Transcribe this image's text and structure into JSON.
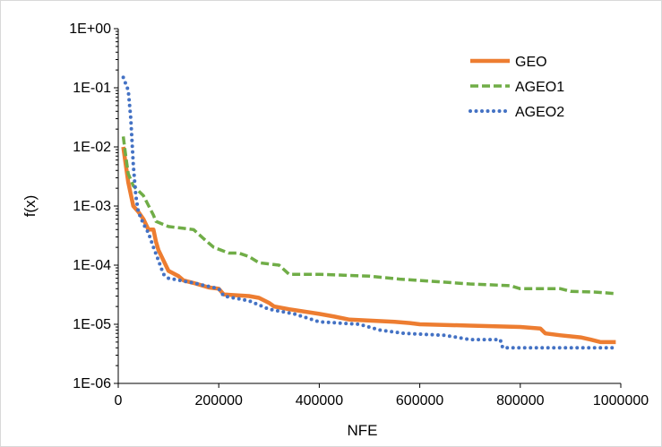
{
  "chart_data": {
    "type": "line",
    "title": "",
    "xlabel": "NFE",
    "ylabel": "f(x)",
    "xlim": [
      0,
      1000000
    ],
    "ylim": [
      1e-06,
      1
    ],
    "y_scale": "log",
    "grid": false,
    "legend_position": "top-right",
    "x_ticks": [
      {
        "value": 0,
        "label": "0"
      },
      {
        "value": 200000,
        "label": "200000"
      },
      {
        "value": 400000,
        "label": "400000"
      },
      {
        "value": 600000,
        "label": "600000"
      },
      {
        "value": 800000,
        "label": "800000"
      },
      {
        "value": 1000000,
        "label": "1000000"
      }
    ],
    "y_ticks": [
      {
        "value": 1,
        "label": "1E+00"
      },
      {
        "value": 0.1,
        "label": "1E-01"
      },
      {
        "value": 0.01,
        "label": "1E-02"
      },
      {
        "value": 0.001,
        "label": "1E-03"
      },
      {
        "value": 0.0001,
        "label": "1E-04"
      },
      {
        "value": 1e-05,
        "label": "1E-05"
      },
      {
        "value": 1e-06,
        "label": "1E-06"
      }
    ],
    "series": [
      {
        "name": "GEO",
        "color": "#ED7D31",
        "style": "solid",
        "points": [
          [
            10000,
            0.01
          ],
          [
            15000,
            0.005
          ],
          [
            20000,
            0.0025
          ],
          [
            30000,
            0.001
          ],
          [
            40000,
            0.0008
          ],
          [
            50000,
            0.0006
          ],
          [
            60000,
            0.0004
          ],
          [
            70000,
            0.0004
          ],
          [
            75000,
            0.00025
          ],
          [
            80000,
            0.00018
          ],
          [
            90000,
            0.00012
          ],
          [
            100000,
            8e-05
          ],
          [
            120000,
            6.5e-05
          ],
          [
            130000,
            5.5e-05
          ],
          [
            150000,
            5e-05
          ],
          [
            180000,
            4.2e-05
          ],
          [
            200000,
            4e-05
          ],
          [
            210000,
            3.2e-05
          ],
          [
            260000,
            3e-05
          ],
          [
            280000,
            2.8e-05
          ],
          [
            300000,
            2.3e-05
          ],
          [
            310000,
            2e-05
          ],
          [
            340000,
            1.8e-05
          ],
          [
            400000,
            1.5e-05
          ],
          [
            430000,
            1.35e-05
          ],
          [
            460000,
            1.2e-05
          ],
          [
            550000,
            1.1e-05
          ],
          [
            580000,
            1.05e-05
          ],
          [
            600000,
            1e-05
          ],
          [
            700000,
            9.5e-06
          ],
          [
            800000,
            9e-06
          ],
          [
            840000,
            8.5e-06
          ],
          [
            850000,
            7e-06
          ],
          [
            880000,
            6.5e-06
          ],
          [
            920000,
            6e-06
          ],
          [
            940000,
            5.5e-06
          ],
          [
            960000,
            5e-06
          ],
          [
            990000,
            5e-06
          ]
        ]
      },
      {
        "name": "AGEO1",
        "color": "#70AD47",
        "style": "dashed",
        "points": [
          [
            10000,
            0.015
          ],
          [
            15000,
            0.007
          ],
          [
            20000,
            0.0035
          ],
          [
            30000,
            0.0022
          ],
          [
            50000,
            0.0015
          ],
          [
            70000,
            0.0007
          ],
          [
            75000,
            0.00055
          ],
          [
            100000,
            0.00045
          ],
          [
            130000,
            0.00042
          ],
          [
            150000,
            0.0004
          ],
          [
            170000,
            0.00028
          ],
          [
            190000,
            0.0002
          ],
          [
            220000,
            0.00016
          ],
          [
            240000,
            0.00016
          ],
          [
            260000,
            0.00014
          ],
          [
            280000,
            0.00011
          ],
          [
            320000,
            0.0001
          ],
          [
            340000,
            7e-05
          ],
          [
            400000,
            7e-05
          ],
          [
            500000,
            6.5e-05
          ],
          [
            560000,
            5.8e-05
          ],
          [
            600000,
            5.5e-05
          ],
          [
            700000,
            4.8e-05
          ],
          [
            780000,
            4.5e-05
          ],
          [
            800000,
            4e-05
          ],
          [
            880000,
            4e-05
          ],
          [
            900000,
            3.6e-05
          ],
          [
            950000,
            3.5e-05
          ],
          [
            990000,
            3.3e-05
          ]
        ]
      },
      {
        "name": "AGEO2",
        "color": "#4472C4",
        "style": "dotted",
        "points": [
          [
            10000,
            0.15
          ],
          [
            20000,
            0.09
          ],
          [
            25000,
            0.03
          ],
          [
            30000,
            0.005
          ],
          [
            35000,
            0.0015
          ],
          [
            40000,
            0.0008
          ],
          [
            50000,
            0.0005
          ],
          [
            60000,
            0.00035
          ],
          [
            70000,
            0.0002
          ],
          [
            80000,
            0.00012
          ],
          [
            90000,
            7e-05
          ],
          [
            100000,
            6e-05
          ],
          [
            150000,
            5e-05
          ],
          [
            200000,
            4e-05
          ],
          [
            210000,
            3e-05
          ],
          [
            260000,
            2.5e-05
          ],
          [
            300000,
            1.8e-05
          ],
          [
            350000,
            1.5e-05
          ],
          [
            400000,
            1.1e-05
          ],
          [
            480000,
            1e-05
          ],
          [
            520000,
            8e-06
          ],
          [
            570000,
            7e-06
          ],
          [
            650000,
            6.5e-06
          ],
          [
            700000,
            5.5e-06
          ],
          [
            760000,
            5.5e-06
          ],
          [
            765000,
            4e-06
          ],
          [
            990000,
            4e-06
          ]
        ]
      }
    ]
  }
}
